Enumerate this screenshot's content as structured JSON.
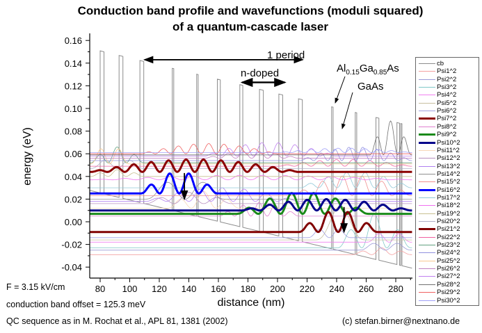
{
  "chart_data": {
    "type": "line",
    "title_line1": "Conduction band profile and wavefunctions (moduli squared)",
    "title_line2": "of a quantum-cascade laser",
    "xlabel": "distance (nm)",
    "ylabel": "energy (eV)",
    "xlim": [
      73,
      291
    ],
    "ylim": [
      -0.05,
      0.165
    ],
    "xticks": [
      80,
      100,
      120,
      140,
      160,
      180,
      200,
      220,
      240,
      260,
      280
    ],
    "xtick_labels": [
      "80",
      "100",
      "120",
      "140",
      "160",
      "180",
      "200",
      "220",
      "240",
      "260",
      "280"
    ],
    "yticks": [
      0.16,
      0.14,
      0.12,
      0.1,
      0.08,
      0.06,
      0.04,
      0.02,
      0.0,
      -0.02,
      -0.04
    ],
    "ytick_labels": [
      "0.16",
      "0.14",
      "0.12",
      "0.10",
      "0.08",
      "0.06",
      "0.04",
      "0.02",
      "0.00",
      "-0.02",
      "-0.04"
    ],
    "grid": false,
    "legend_position": "right-outside",
    "conduction_band": {
      "name": "cb",
      "color": "#8c8c8c",
      "band_offset_eV": 0.1253,
      "field_kV_per_cm": 3.15,
      "bottom_at_80nm_eV": 0.0255,
      "barriers_nm": [
        [
          80.0,
          2.6
        ],
        [
          92.8,
          2.6
        ],
        [
          106.9,
          2.6
        ],
        [
          128.8,
          1.0
        ],
        [
          145.3,
          1.0
        ],
        [
          159.3,
          2.0
        ],
        [
          174.5,
          2.0
        ],
        [
          187.8,
          2.6
        ],
        [
          200.9,
          2.6
        ],
        [
          214.2,
          2.6
        ],
        [
          236.6,
          1.0
        ],
        [
          252.6,
          1.0
        ],
        [
          266.6,
          2.0
        ],
        [
          280.8,
          1.8
        ],
        [
          283.4,
          0.8
        ]
      ]
    },
    "series": [
      {
        "name": "Psi1^2",
        "color": "#f4a0a0",
        "energy": -0.029,
        "region": [
          250,
          291
        ],
        "amp": 0.006,
        "n": 3,
        "thick": false
      },
      {
        "name": "Psi2^2",
        "color": "#9a9ad8",
        "energy": -0.025,
        "region": [
          255,
          291
        ],
        "amp": 0.008,
        "n": 2,
        "thick": false
      },
      {
        "name": "Psi3^2",
        "color": "#80c8c8",
        "energy": -0.023,
        "region": [
          240,
          291
        ],
        "amp": 0.03,
        "n": 3,
        "thick": false
      },
      {
        "name": "Psi4^2",
        "color": "#f080f0",
        "energy": -0.018,
        "region": [
          260,
          291
        ],
        "amp": 0.01,
        "n": 2,
        "thick": false
      },
      {
        "name": "Psi5^2",
        "color": "#c8c0a0",
        "energy": -0.016,
        "region": [
          225,
          260
        ],
        "amp": 0.03,
        "n": 1,
        "thick": false
      },
      {
        "name": "Psi6^2",
        "color": "#a0a0e0",
        "energy": -0.014,
        "region": [
          220,
          250
        ],
        "amp": 0.01,
        "n": 2,
        "thick": false
      },
      {
        "name": "Psi7^2",
        "color": "#8b0000",
        "energy": 0.044,
        "region": [
          73,
          215
        ],
        "amp": 0.011,
        "n": 12,
        "thick": true
      },
      {
        "name": "Psi8^2",
        "color": "#e080d0",
        "energy": 0.005,
        "region": [
          160,
          215
        ],
        "amp": 0.012,
        "n": 5,
        "thick": false
      },
      {
        "name": "Psi9^2",
        "color": "#1a8a1a",
        "energy": 0.007,
        "region": [
          172,
          262
        ],
        "amp": 0.019,
        "n": 6,
        "thick": true
      },
      {
        "name": "Psi10^2",
        "color": "#00008b",
        "energy": 0.01,
        "region": [
          175,
          291
        ],
        "amp": 0.01,
        "n": 9,
        "thick": true
      },
      {
        "name": "Psi11^2",
        "color": "#f8d8b8",
        "energy": 0.012,
        "region": [
          125,
          175
        ],
        "amp": 0.015,
        "n": 3,
        "thick": false
      },
      {
        "name": "Psi12^2",
        "color": "#b890c0",
        "energy": 0.016,
        "region": [
          110,
          170
        ],
        "amp": 0.01,
        "n": 3,
        "thick": false
      },
      {
        "name": "Psi13^2",
        "color": "#b080f0",
        "energy": 0.018,
        "region": [
          110,
          215
        ],
        "amp": 0.012,
        "n": 7,
        "thick": false
      },
      {
        "name": "Psi14^2",
        "color": "#909090",
        "energy": 0.02,
        "region": [
          110,
          165
        ],
        "amp": 0.02,
        "n": 2,
        "thick": false
      },
      {
        "name": "Psi15^2",
        "color": "#f09090",
        "energy": 0.023,
        "region": [
          210,
          291
        ],
        "amp": 0.018,
        "n": 6,
        "thick": false
      },
      {
        "name": "Psi16^2",
        "color": "#0000ff",
        "energy": 0.025,
        "region": [
          107,
          160
        ],
        "amp": 0.019,
        "n": 4,
        "thick": true
      },
      {
        "name": "Psi17^2",
        "color": "#90c8d8",
        "energy": 0.03,
        "region": [
          215,
          291
        ],
        "amp": 0.014,
        "n": 6,
        "thick": false
      },
      {
        "name": "Psi18^2",
        "color": "#f070f0",
        "energy": 0.037,
        "region": [
          73,
          291
        ],
        "amp": 0.004,
        "n": 14,
        "thick": false
      },
      {
        "name": "Psi19^2",
        "color": "#c8c090",
        "energy": 0.04,
        "region": [
          73,
          110
        ],
        "amp": 0.006,
        "n": 3,
        "thick": false
      },
      {
        "name": "Psi20^2",
        "color": "#b0b0c8",
        "energy": 0.047,
        "region": [
          73,
          110
        ],
        "amp": 0.01,
        "n": 2,
        "thick": false
      },
      {
        "name": "Psi21^2",
        "color": "#800000",
        "energy": -0.009,
        "region": [
          214,
          268
        ],
        "amp": 0.019,
        "n": 4,
        "thick": true
      },
      {
        "name": "Psi22^2",
        "color": "#f060a0",
        "energy": 0.049,
        "region": [
          200,
          291
        ],
        "amp": 0.006,
        "n": 8,
        "thick": false
      },
      {
        "name": "Psi23^2",
        "color": "#60a080",
        "energy": 0.052,
        "region": [
          73,
          110
        ],
        "amp": 0.014,
        "n": 3,
        "thick": false
      },
      {
        "name": "Psi24^2",
        "color": "#9090e0",
        "energy": 0.054,
        "region": [
          215,
          291
        ],
        "amp": 0.012,
        "n": 8,
        "thick": false
      },
      {
        "name": "Psi25^2",
        "color": "#f8c890",
        "energy": 0.051,
        "region": [
          73,
          100
        ],
        "amp": 0.018,
        "n": 2,
        "thick": false
      },
      {
        "name": "Psi26^2",
        "color": "#c080c0",
        "energy": 0.056,
        "region": [
          150,
          215
        ],
        "amp": 0.006,
        "n": 6,
        "thick": false
      },
      {
        "name": "Psi27^2",
        "color": "#c080f0",
        "energy": 0.058,
        "region": [
          150,
          240
        ],
        "amp": 0.012,
        "n": 8,
        "thick": false
      },
      {
        "name": "Psi28^2",
        "color": "#707070",
        "energy": 0.059,
        "region": [
          262,
          291
        ],
        "amp": 0.03,
        "n": 3,
        "thick": false
      },
      {
        "name": "Psi29^2",
        "color": "#f06060",
        "energy": 0.06,
        "region": [
          107,
          200
        ],
        "amp": 0.009,
        "n": 9,
        "thick": false
      },
      {
        "name": "Psi30^2",
        "color": "#a0a0f8",
        "energy": 0.061,
        "region": [
          200,
          291
        ],
        "amp": 0.004,
        "n": 10,
        "thick": false
      }
    ],
    "annotations": {
      "period_label": "1 period",
      "period_range_nm": [
        110,
        217
      ],
      "period_energy": 0.143,
      "ndoped_label": "n-doped",
      "ndoped_range_nm": [
        176,
        205
      ],
      "ndoped_energy": 0.123,
      "barrier_material": {
        "base1": "Al",
        "sub1": "0.15",
        "base2": "Ga",
        "sub2": "0.85",
        "base3": "As"
      },
      "well_material": "GaAs",
      "transition_arrows": [
        [
          137,
          0.043,
          0.02
        ],
        [
          245,
          0.013,
          -0.009
        ]
      ]
    }
  },
  "notes": {
    "field": "F = 3.15 kV/cm",
    "offset": "conduction band offset = 125.3 meV",
    "sequence": "QC sequence as in M. Rochat et al., APL 81, 1381 (2002)",
    "copyright": "(c) stefan.birner@nextnano.de"
  }
}
